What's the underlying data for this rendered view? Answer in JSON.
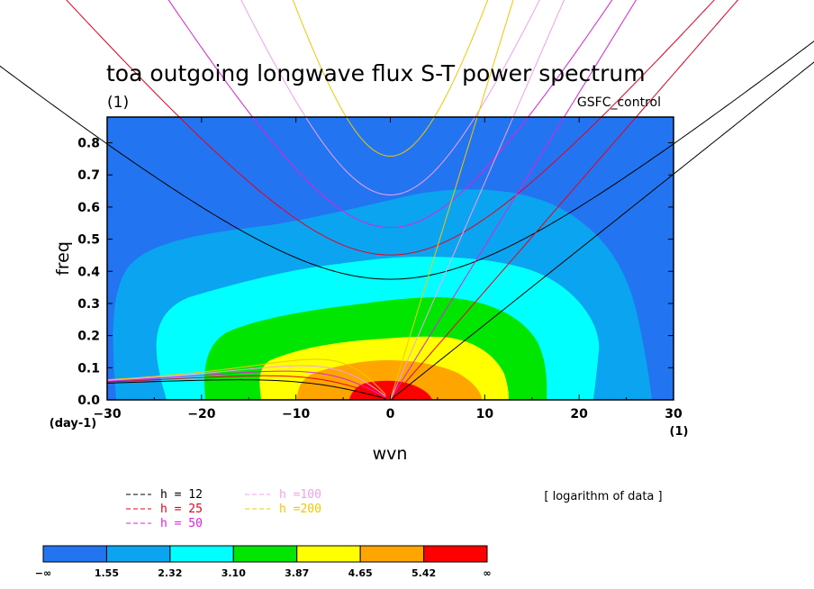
{
  "chart_data": {
    "type": "contour",
    "title": "toa outgoing longwave flux S-T power spectrum",
    "subtitle_left": "(1)",
    "subtitle_right": "GSFC_control",
    "xlabel": "wvn",
    "ylabel": "freq",
    "x_unit_label": "(1)",
    "y_unit_label": "(day-1)",
    "xlim": [
      -30,
      30
    ],
    "ylim": [
      0,
      0.88
    ],
    "x_ticks": [
      -30,
      -20,
      -10,
      0,
      10,
      20,
      30
    ],
    "x_tick_labels": [
      "−30",
      "−20",
      "−10",
      "0",
      "10",
      "20",
      "30"
    ],
    "y_ticks": [
      0.0,
      0.1,
      0.2,
      0.3,
      0.4,
      0.5,
      0.6,
      0.7,
      0.8
    ],
    "y_tick_labels": [
      "0.0",
      "0.1",
      "0.2",
      "0.3",
      "0.4",
      "0.5",
      "0.6",
      "0.7",
      "0.8"
    ],
    "note": "[ logarithm of data ]",
    "contour_levels": [
      "−∞",
      "1.55",
      "2.32",
      "3.10",
      "3.87",
      "4.65",
      "5.42",
      "∞"
    ],
    "contour_colors": [
      "#2374f0",
      "#0aa4f0",
      "#00ffff",
      "#00e600",
      "#ffff00",
      "#ffa500",
      "#ff0000"
    ],
    "dispersion_curves": [
      {
        "label": "h = 12",
        "h": 12,
        "color": "#000000"
      },
      {
        "label": "h = 25",
        "h": 25,
        "color": "#e8001e"
      },
      {
        "label": "h = 50",
        "h": 50,
        "color": "#e020e0"
      },
      {
        "label": "h =100",
        "h": 100,
        "color": "#f0a0f0"
      },
      {
        "label": "h =200",
        "h": 200,
        "color": "#f0c800"
      }
    ],
    "grid": false,
    "legend_position": "bottom"
  }
}
